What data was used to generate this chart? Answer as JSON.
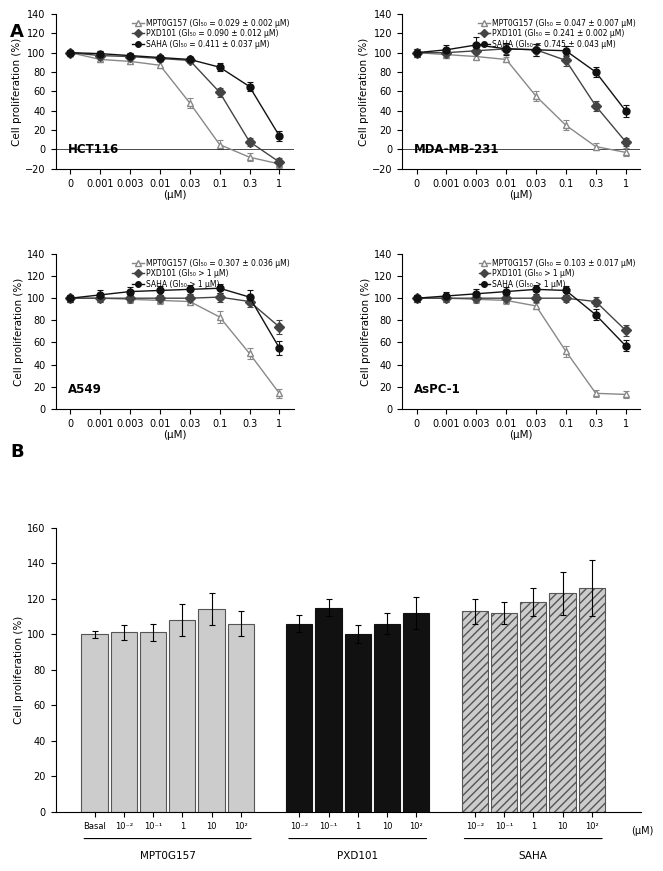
{
  "panel_A": {
    "x_vals": [
      0,
      0.001,
      0.003,
      0.01,
      0.03,
      0.1,
      0.3,
      1
    ],
    "x_labels": [
      "0",
      "0.001",
      "0.003",
      "0.01",
      "0.03",
      "0.1",
      "0.3",
      "1"
    ],
    "subplots": [
      {
        "title": "HCT116",
        "legend_title": "HCT116",
        "legend": [
          "MPT0G157 (GI₅₀ = 0.029 ± 0.002 μM)",
          "PXD101 (GI₅₀ = 0.090 ± 0.012 μM)",
          "SAHA (GI₅₀ = 0.411 ± 0.037 μM)"
        ],
        "ylim": [
          -20,
          140
        ],
        "yticks": [
          -20,
          0,
          20,
          40,
          60,
          80,
          100,
          120,
          140
        ],
        "series": [
          {
            "y": [
              100,
              93,
              91,
              87,
              48,
              5,
              -8,
              -15
            ],
            "yerr": [
              3,
              3,
              3,
              3,
              5,
              5,
              4,
              4
            ],
            "color": "#888888",
            "marker": "^",
            "markerfacecolor": "white",
            "markersize": 5,
            "linestyle": "-"
          },
          {
            "y": [
              100,
              97,
              96,
              94,
              92,
              59,
              8,
              -13
            ],
            "yerr": [
              3,
              3,
              3,
              3,
              3,
              5,
              4,
              4
            ],
            "color": "#444444",
            "marker": "D",
            "markerfacecolor": "#444444",
            "markersize": 5,
            "linestyle": "-"
          },
          {
            "y": [
              100,
              99,
              97,
              95,
              93,
              85,
              65,
              14
            ],
            "yerr": [
              3,
              3,
              3,
              3,
              3,
              4,
              5,
              5
            ],
            "color": "#111111",
            "marker": "o",
            "markerfacecolor": "#111111",
            "markersize": 5,
            "linestyle": "-"
          }
        ]
      },
      {
        "title": "MDA-MB-231",
        "legend": [
          "MPT0G157 (GI₅₀ = 0.047 ± 0.007 μM)",
          "PXD101 (GI₅₀ = 0.241 ± 0.002 μM)",
          "SAHA (GI₅₀ = 0.745 ± 0.043 μM)"
        ],
        "ylim": [
          -20,
          140
        ],
        "yticks": [
          -20,
          0,
          20,
          40,
          60,
          80,
          100,
          120,
          140
        ],
        "series": [
          {
            "y": [
              100,
              98,
              96,
              93,
              55,
              25,
              3,
              -3
            ],
            "yerr": [
              3,
              3,
              3,
              3,
              5,
              5,
              4,
              4
            ],
            "color": "#888888",
            "marker": "^",
            "markerfacecolor": "white",
            "markersize": 5,
            "linestyle": "-"
          },
          {
            "y": [
              100,
              100,
              102,
              104,
              103,
              92,
              45,
              8
            ],
            "yerr": [
              4,
              4,
              5,
              5,
              6,
              6,
              5,
              4
            ],
            "color": "#444444",
            "marker": "D",
            "markerfacecolor": "#444444",
            "markersize": 5,
            "linestyle": "-"
          },
          {
            "y": [
              100,
              103,
              108,
              104,
              103,
              102,
              80,
              40
            ],
            "yerr": [
              4,
              5,
              8,
              6,
              6,
              5,
              5,
              6
            ],
            "color": "#111111",
            "marker": "o",
            "markerfacecolor": "#111111",
            "markersize": 5,
            "linestyle": "-"
          }
        ]
      },
      {
        "title": "A549",
        "legend": [
          "MPT0G157 (GI₅₀ = 0.307 ± 0.036 μM)",
          "PXD101 (GI₅₀ > 1 μM)",
          "SAHA (GI₅₀ > 1 μM)"
        ],
        "ylim": [
          0,
          140
        ],
        "yticks": [
          0,
          20,
          40,
          60,
          80,
          100,
          120,
          140
        ],
        "series": [
          {
            "y": [
              100,
              100,
              99,
              98,
              97,
              83,
              50,
              14
            ],
            "yerr": [
              3,
              3,
              3,
              3,
              3,
              5,
              5,
              4
            ],
            "color": "#888888",
            "marker": "^",
            "markerfacecolor": "white",
            "markersize": 5,
            "linestyle": "-"
          },
          {
            "y": [
              100,
              100,
              100,
              100,
              100,
              101,
              97,
              74
            ],
            "yerr": [
              3,
              3,
              3,
              3,
              3,
              4,
              5,
              6
            ],
            "color": "#444444",
            "marker": "D",
            "markerfacecolor": "#444444",
            "markersize": 5,
            "linestyle": "-"
          },
          {
            "y": [
              100,
              103,
              106,
              107,
              108,
              109,
              101,
              55
            ],
            "yerr": [
              3,
              4,
              4,
              4,
              4,
              4,
              6,
              6
            ],
            "color": "#111111",
            "marker": "o",
            "markerfacecolor": "#111111",
            "markersize": 5,
            "linestyle": "-"
          }
        ]
      },
      {
        "title": "AsPC-1",
        "legend": [
          "MPT0G157 (GI₅₀ = 0.103 ± 0.017 μM)",
          "PXD101 (GI₅₀ > 1 μM)",
          "SAHA (GI₅₀ > 1 μM)"
        ],
        "ylim": [
          0,
          140
        ],
        "yticks": [
          0,
          20,
          40,
          60,
          80,
          100,
          120,
          140
        ],
        "series": [
          {
            "y": [
              100,
              100,
              99,
              98,
              93,
              52,
              14,
              13
            ],
            "yerr": [
              3,
              3,
              3,
              3,
              3,
              5,
              3,
              3
            ],
            "color": "#888888",
            "marker": "^",
            "markerfacecolor": "white",
            "markersize": 5,
            "linestyle": "-"
          },
          {
            "y": [
              100,
              100,
              100,
              100,
              100,
              100,
              97,
              71
            ],
            "yerr": [
              3,
              3,
              3,
              3,
              3,
              3,
              4,
              5
            ],
            "color": "#444444",
            "marker": "D",
            "markerfacecolor": "#444444",
            "markersize": 5,
            "linestyle": "-"
          },
          {
            "y": [
              100,
              102,
              104,
              106,
              108,
              107,
              85,
              57
            ],
            "yerr": [
              3,
              4,
              4,
              4,
              4,
              4,
              5,
              5
            ],
            "color": "#111111",
            "marker": "o",
            "markerfacecolor": "#111111",
            "markersize": 5,
            "linestyle": "-"
          }
        ]
      }
    ]
  },
  "panel_B": {
    "ylabel": "Cell proliferation (%)",
    "ylim": [
      0,
      160
    ],
    "yticks": [
      0,
      20,
      40,
      60,
      80,
      100,
      120,
      140,
      160
    ],
    "groups": [
      {
        "drug": "MPT0G157",
        "labels": [
          "Basal",
          "10⁻²",
          "10⁻¹",
          "1",
          "10",
          "10²"
        ],
        "values": [
          100,
          101,
          101,
          108,
          114,
          106
        ],
        "errors": [
          2,
          4,
          5,
          9,
          9,
          7
        ],
        "color": "#cccccc",
        "edgecolor": "#555555",
        "hatch": ""
      },
      {
        "drug": "PXD101",
        "labels": [
          "10⁻²",
          "10⁻¹",
          "1",
          "10",
          "10²"
        ],
        "values": [
          106,
          115,
          100,
          106,
          112
        ],
        "errors": [
          5,
          5,
          5,
          6,
          9
        ],
        "color": "#111111",
        "edgecolor": "#111111",
        "hatch": ""
      },
      {
        "drug": "SAHA",
        "labels": [
          "10⁻²",
          "10⁻¹",
          "1",
          "10",
          "10²"
        ],
        "values": [
          113,
          112,
          118,
          123,
          126
        ],
        "errors": [
          7,
          6,
          8,
          12,
          16
        ],
        "color": "#cccccc",
        "edgecolor": "#555555",
        "hatch": "////"
      }
    ]
  }
}
